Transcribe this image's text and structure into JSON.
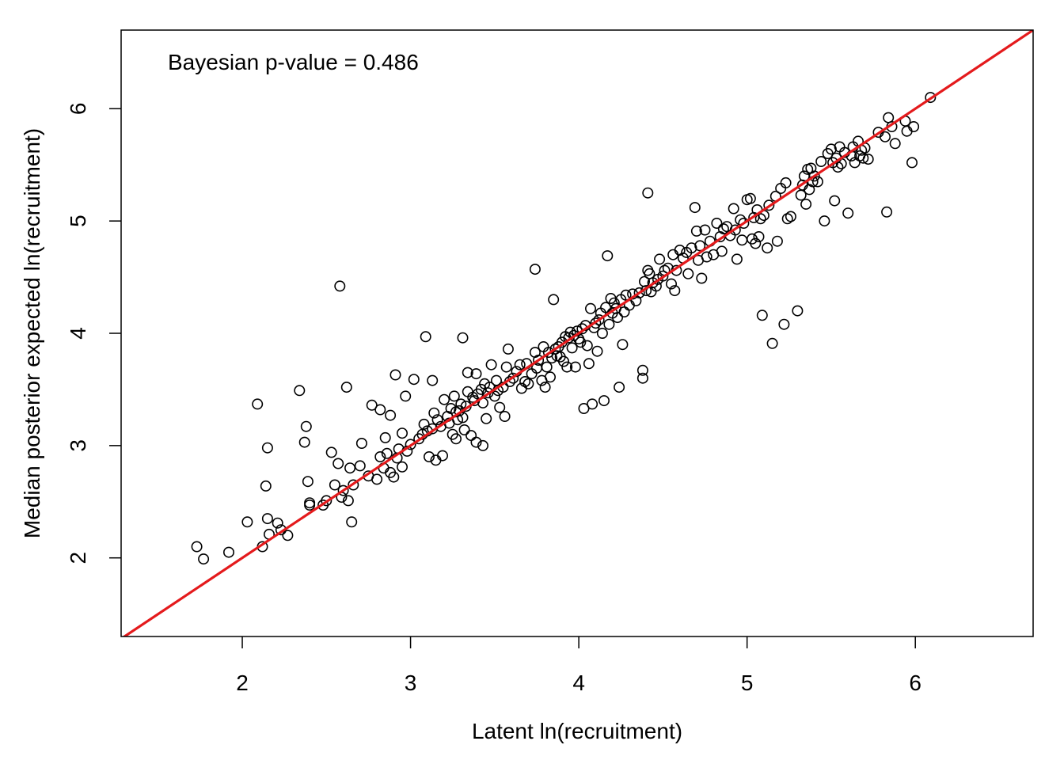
{
  "chart_data": {
    "type": "scatter",
    "xlabel": "Latent ln(recruitment)",
    "ylabel": "Median posterior expected ln(recruitment)",
    "annotation": "Bayesian p-value = 0.486",
    "xlim": [
      1.28,
      6.7
    ],
    "ylim": [
      1.3,
      6.7
    ],
    "x_ticks": [
      2,
      3,
      4,
      5,
      6
    ],
    "y_ticks": [
      2,
      3,
      4,
      5,
      6
    ],
    "grid": false,
    "legend": "none",
    "reference_line": {
      "slope": 1,
      "intercept": 0,
      "color": "#E41A1C"
    },
    "point_color": "#000000",
    "points": [
      [
        1.73,
        2.1
      ],
      [
        1.77,
        1.99
      ],
      [
        1.92,
        2.05
      ],
      [
        2.03,
        2.32
      ],
      [
        2.09,
        3.37
      ],
      [
        2.12,
        2.1
      ],
      [
        2.14,
        2.64
      ],
      [
        2.15,
        2.98
      ],
      [
        2.15,
        2.35
      ],
      [
        2.16,
        2.21
      ],
      [
        2.21,
        2.31
      ],
      [
        2.23,
        2.25
      ],
      [
        2.27,
        2.2
      ],
      [
        2.34,
        3.49
      ],
      [
        2.37,
        3.03
      ],
      [
        2.38,
        3.17
      ],
      [
        2.39,
        2.68
      ],
      [
        2.4,
        2.49
      ],
      [
        2.4,
        2.47
      ],
      [
        2.48,
        2.47
      ],
      [
        2.5,
        2.51
      ],
      [
        2.53,
        2.94
      ],
      [
        2.55,
        2.65
      ],
      [
        2.57,
        2.84
      ],
      [
        2.58,
        4.42
      ],
      [
        2.59,
        2.54
      ],
      [
        2.6,
        2.6
      ],
      [
        2.62,
        3.52
      ],
      [
        2.63,
        2.51
      ],
      [
        2.65,
        2.32
      ],
      [
        2.64,
        2.8
      ],
      [
        2.66,
        2.65
      ],
      [
        2.7,
        2.82
      ],
      [
        2.71,
        3.02
      ],
      [
        2.75,
        2.73
      ],
      [
        2.77,
        3.36
      ],
      [
        2.8,
        2.7
      ],
      [
        2.82,
        2.9
      ],
      [
        2.82,
        3.32
      ],
      [
        2.84,
        2.8
      ],
      [
        2.85,
        3.07
      ],
      [
        2.86,
        2.93
      ],
      [
        2.88,
        2.76
      ],
      [
        2.88,
        3.27
      ],
      [
        2.9,
        2.72
      ],
      [
        2.91,
        3.63
      ],
      [
        2.92,
        2.89
      ],
      [
        2.93,
        2.97
      ],
      [
        2.95,
        2.81
      ],
      [
        2.95,
        3.11
      ],
      [
        2.97,
        3.44
      ],
      [
        2.98,
        2.95
      ],
      [
        3.0,
        3.01
      ],
      [
        3.02,
        3.59
      ],
      [
        3.05,
        3.06
      ],
      [
        3.07,
        3.1
      ],
      [
        3.08,
        3.19
      ],
      [
        3.09,
        3.97
      ],
      [
        3.1,
        3.13
      ],
      [
        3.11,
        2.9
      ],
      [
        3.13,
        3.58
      ],
      [
        3.13,
        3.15
      ],
      [
        3.14,
        3.29
      ],
      [
        3.15,
        2.87
      ],
      [
        3.16,
        3.23
      ],
      [
        3.18,
        3.17
      ],
      [
        3.19,
        2.91
      ],
      [
        3.2,
        3.41
      ],
      [
        3.22,
        3.26
      ],
      [
        3.23,
        3.2
      ],
      [
        3.24,
        3.33
      ],
      [
        3.25,
        3.1
      ],
      [
        3.26,
        3.44
      ],
      [
        3.27,
        3.3
      ],
      [
        3.27,
        3.06
      ],
      [
        3.28,
        3.23
      ],
      [
        3.29,
        3.31
      ],
      [
        3.3,
        3.37
      ],
      [
        3.31,
        3.25
      ],
      [
        3.31,
        3.96
      ],
      [
        3.32,
        3.14
      ],
      [
        3.33,
        3.35
      ],
      [
        3.34,
        3.65
      ],
      [
        3.34,
        3.48
      ],
      [
        3.36,
        3.09
      ],
      [
        3.37,
        3.43
      ],
      [
        3.38,
        3.4
      ],
      [
        3.39,
        3.03
      ],
      [
        3.39,
        3.64
      ],
      [
        3.4,
        3.46
      ],
      [
        3.42,
        3.5
      ],
      [
        3.43,
        3.0
      ],
      [
        3.43,
        3.38
      ],
      [
        3.44,
        3.55
      ],
      [
        3.45,
        3.24
      ],
      [
        3.46,
        3.47
      ],
      [
        3.47,
        3.52
      ],
      [
        3.48,
        3.72
      ],
      [
        3.5,
        3.44
      ],
      [
        3.51,
        3.58
      ],
      [
        3.52,
        3.49
      ],
      [
        3.53,
        3.34
      ],
      [
        3.55,
        3.52
      ],
      [
        3.56,
        3.26
      ],
      [
        3.57,
        3.7
      ],
      [
        3.58,
        3.86
      ],
      [
        3.59,
        3.57
      ],
      [
        3.61,
        3.6
      ],
      [
        3.63,
        3.66
      ],
      [
        3.65,
        3.72
      ],
      [
        3.66,
        3.51
      ],
      [
        3.68,
        3.57
      ],
      [
        3.69,
        3.73
      ],
      [
        3.7,
        3.55
      ],
      [
        3.72,
        3.64
      ],
      [
        3.74,
        3.83
      ],
      [
        3.74,
        4.57
      ],
      [
        3.75,
        3.69
      ],
      [
        3.76,
        3.76
      ],
      [
        3.78,
        3.58
      ],
      [
        3.79,
        3.88
      ],
      [
        3.8,
        3.52
      ],
      [
        3.81,
        3.7
      ],
      [
        3.82,
        3.83
      ],
      [
        3.83,
        3.61
      ],
      [
        3.84,
        3.78
      ],
      [
        3.85,
        4.3
      ],
      [
        3.86,
        3.86
      ],
      [
        3.87,
        3.8
      ],
      [
        3.88,
        3.88
      ],
      [
        3.89,
        3.79
      ],
      [
        3.9,
        3.92
      ],
      [
        3.91,
        3.75
      ],
      [
        3.92,
        3.97
      ],
      [
        3.93,
        3.7
      ],
      [
        3.94,
        3.96
      ],
      [
        3.95,
        4.01
      ],
      [
        3.96,
        3.87
      ],
      [
        3.97,
        3.98
      ],
      [
        3.98,
        3.7
      ],
      [
        3.99,
        4.02
      ],
      [
        4.0,
        3.95
      ],
      [
        4.01,
        3.92
      ],
      [
        4.02,
        4.04
      ],
      [
        4.03,
        3.33
      ],
      [
        4.04,
        4.07
      ],
      [
        4.05,
        3.89
      ],
      [
        4.06,
        3.73
      ],
      [
        4.07,
        4.22
      ],
      [
        4.08,
        3.37
      ],
      [
        4.09,
        4.05
      ],
      [
        4.1,
        4.09
      ],
      [
        4.11,
        3.84
      ],
      [
        4.12,
        4.12
      ],
      [
        4.13,
        4.18
      ],
      [
        4.14,
        4.0
      ],
      [
        4.15,
        3.4
      ],
      [
        4.16,
        4.23
      ],
      [
        4.17,
        4.69
      ],
      [
        4.18,
        4.08
      ],
      [
        4.19,
        4.31
      ],
      [
        4.2,
        4.18
      ],
      [
        4.21,
        4.27
      ],
      [
        4.22,
        4.22
      ],
      [
        4.23,
        4.14
      ],
      [
        4.24,
        3.52
      ],
      [
        4.25,
        4.3
      ],
      [
        4.26,
        3.9
      ],
      [
        4.27,
        4.19
      ],
      [
        4.28,
        4.34
      ],
      [
        4.3,
        4.25
      ],
      [
        4.32,
        4.35
      ],
      [
        4.34,
        4.29
      ],
      [
        4.36,
        4.36
      ],
      [
        4.38,
        3.6
      ],
      [
        4.38,
        3.67
      ],
      [
        4.39,
        4.46
      ],
      [
        4.4,
        4.38
      ],
      [
        4.41,
        4.56
      ],
      [
        4.41,
        5.25
      ],
      [
        4.42,
        4.53
      ],
      [
        4.43,
        4.37
      ],
      [
        4.44,
        4.45
      ],
      [
        4.46,
        4.42
      ],
      [
        4.47,
        4.48
      ],
      [
        4.48,
        4.66
      ],
      [
        4.5,
        4.51
      ],
      [
        4.51,
        4.56
      ],
      [
        4.53,
        4.58
      ],
      [
        4.55,
        4.44
      ],
      [
        4.56,
        4.7
      ],
      [
        4.57,
        4.38
      ],
      [
        4.58,
        4.56
      ],
      [
        4.6,
        4.74
      ],
      [
        4.62,
        4.67
      ],
      [
        4.64,
        4.72
      ],
      [
        4.65,
        4.53
      ],
      [
        4.67,
        4.76
      ],
      [
        4.69,
        5.12
      ],
      [
        4.7,
        4.91
      ],
      [
        4.71,
        4.65
      ],
      [
        4.72,
        4.78
      ],
      [
        4.73,
        4.49
      ],
      [
        4.75,
        4.92
      ],
      [
        4.76,
        4.68
      ],
      [
        4.78,
        4.82
      ],
      [
        4.8,
        4.7
      ],
      [
        4.82,
        4.98
      ],
      [
        4.84,
        4.86
      ],
      [
        4.85,
        4.73
      ],
      [
        4.86,
        4.93
      ],
      [
        4.88,
        4.95
      ],
      [
        4.9,
        4.87
      ],
      [
        4.92,
        5.11
      ],
      [
        4.93,
        4.92
      ],
      [
        4.94,
        4.66
      ],
      [
        4.96,
        5.01
      ],
      [
        4.97,
        4.83
      ],
      [
        4.98,
        4.98
      ],
      [
        5.0,
        5.19
      ],
      [
        5.02,
        5.2
      ],
      [
        5.03,
        4.84
      ],
      [
        5.04,
        5.03
      ],
      [
        5.05,
        4.8
      ],
      [
        5.06,
        5.1
      ],
      [
        5.07,
        4.86
      ],
      [
        5.08,
        5.02
      ],
      [
        5.09,
        4.16
      ],
      [
        5.1,
        5.05
      ],
      [
        5.12,
        4.76
      ],
      [
        5.13,
        5.14
      ],
      [
        5.15,
        3.91
      ],
      [
        5.17,
        5.22
      ],
      [
        5.18,
        4.82
      ],
      [
        5.2,
        5.29
      ],
      [
        5.22,
        4.08
      ],
      [
        5.23,
        5.34
      ],
      [
        5.24,
        5.02
      ],
      [
        5.26,
        5.04
      ],
      [
        5.3,
        4.2
      ],
      [
        5.32,
        5.23
      ],
      [
        5.33,
        5.32
      ],
      [
        5.34,
        5.4
      ],
      [
        5.35,
        5.15
      ],
      [
        5.36,
        5.46
      ],
      [
        5.37,
        5.28
      ],
      [
        5.38,
        5.47
      ],
      [
        5.39,
        5.35
      ],
      [
        5.4,
        5.4
      ],
      [
        5.42,
        5.35
      ],
      [
        5.44,
        5.53
      ],
      [
        5.46,
        5.0
      ],
      [
        5.48,
        5.6
      ],
      [
        5.5,
        5.64
      ],
      [
        5.51,
        5.52
      ],
      [
        5.52,
        5.18
      ],
      [
        5.53,
        5.56
      ],
      [
        5.54,
        5.48
      ],
      [
        5.55,
        5.66
      ],
      [
        5.56,
        5.51
      ],
      [
        5.58,
        5.61
      ],
      [
        5.6,
        5.07
      ],
      [
        5.62,
        5.58
      ],
      [
        5.63,
        5.66
      ],
      [
        5.64,
        5.52
      ],
      [
        5.66,
        5.71
      ],
      [
        5.67,
        5.58
      ],
      [
        5.68,
        5.63
      ],
      [
        5.69,
        5.56
      ],
      [
        5.7,
        5.65
      ],
      [
        5.72,
        5.55
      ],
      [
        5.78,
        5.79
      ],
      [
        5.82,
        5.75
      ],
      [
        5.83,
        5.08
      ],
      [
        5.84,
        5.92
      ],
      [
        5.86,
        5.84
      ],
      [
        5.88,
        5.69
      ],
      [
        5.94,
        5.89
      ],
      [
        5.95,
        5.8
      ],
      [
        5.98,
        5.52
      ],
      [
        5.99,
        5.84
      ],
      [
        6.09,
        6.1
      ]
    ]
  }
}
